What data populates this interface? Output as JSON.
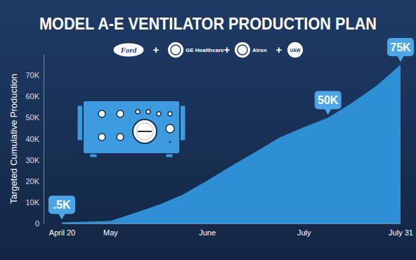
{
  "chart_data": {
    "type": "area",
    "title": "MODEL A-E VENTILATOR PRODUCTION PLAN",
    "partners": [
      "Ford",
      "GE Healthcare",
      "Airon",
      "UAW"
    ],
    "partner_separator": "+",
    "y_label": "Targeted Cumulative Production",
    "categories": [
      "April 20",
      null,
      "May",
      null,
      null,
      null,
      "June",
      null,
      null,
      null,
      "July",
      null,
      null,
      null,
      "July 31"
    ],
    "values": [
      500,
      800,
      1200,
      4900,
      8800,
      13600,
      20200,
      27100,
      33800,
      40600,
      45500,
      50000,
      57000,
      65000,
      75000
    ],
    "color": "#2f8fd4",
    "ylim": [
      0,
      80000
    ],
    "yticks": [
      0,
      {
        "value": 10000,
        "label": "10K"
      },
      {
        "value": 20000,
        "label": "20K"
      },
      {
        "value": 30000,
        "label": "30K"
      },
      {
        "value": 40000,
        "label": "40K"
      },
      {
        "value": 50000,
        "label": "50K"
      },
      {
        "value": 60000,
        "label": "60K"
      },
      {
        "value": 70000,
        "label": "70K"
      }
    ],
    "grid": false,
    "annotations": [
      {
        "index": 0,
        "value": 500,
        "label": ".5K"
      },
      {
        "index": 11,
        "value": 50000,
        "label": "50K"
      },
      {
        "index": 14,
        "value": 75000,
        "label": "75K"
      }
    ]
  }
}
